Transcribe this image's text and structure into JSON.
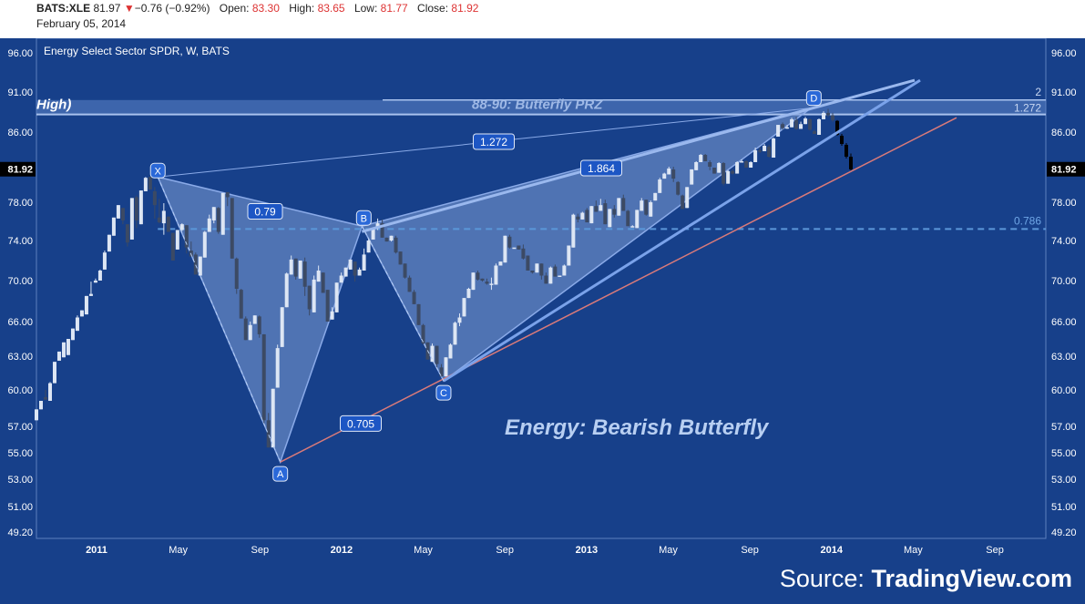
{
  "header": {
    "symbol": "BATS:XLE",
    "last": "81.97",
    "down_arrow": "▼",
    "change": "−0.76 (−0.92%)",
    "open_label": "Open:",
    "open": "83.30",
    "high_label": "High:",
    "high": "83.65",
    "low_label": "Low:",
    "low": "81.77",
    "close_label": "Close:",
    "close": "81.92",
    "date": "February 05, 2014"
  },
  "source": {
    "prefix": "Source: ",
    "brand": "TradingView.com"
  },
  "colors": {
    "background": "#17408a",
    "up_candle": "#dde6f4",
    "down_candle": "#3c4a64",
    "last_candles": "#000000",
    "pattern_fill": "#7d9dd6",
    "pattern_line": "#8aaae8",
    "trend_red": "#d97a7a",
    "level_dashed": "#5b97d9",
    "prz_band": "#5d84c9",
    "point_marker": "#2a68d8"
  },
  "chart_data": {
    "type": "candlestick",
    "title": "Energy Select Sector SPDR, W, BATS",
    "annotation_title": "Energy: Bearish Butterfly",
    "y_ticks": [
      "96.00",
      "91.00",
      "86.00",
      "82.00",
      "78.00",
      "74.00",
      "70.00",
      "66.00",
      "63.00",
      "60.00",
      "57.00",
      "55.00",
      "53.00",
      "51.00",
      "49.20"
    ],
    "x_ticks": [
      "2011",
      "May",
      "Sep",
      "2012",
      "May",
      "Sep",
      "2013",
      "May",
      "Sep",
      "2014",
      "May",
      "Sep"
    ],
    "last_price_label": "81.92",
    "harmonic_points": [
      {
        "label": "X",
        "date": "2011-04",
        "price": 81.0
      },
      {
        "label": "A",
        "date": "2011-10",
        "price": 54.3
      },
      {
        "label": "B",
        "date": "2012-02",
        "price": 75.5
      },
      {
        "label": "C",
        "date": "2012-06",
        "price": 60.8
      },
      {
        "label": "D",
        "date": "2013-12",
        "price": 89.0
      }
    ],
    "ratios": [
      "0.79",
      "0.705",
      "1.864",
      "1.272"
    ],
    "levels": [
      {
        "label": "0.786",
        "price": 75.2
      },
      {
        "label": "1.272",
        "price": 88.2
      },
      {
        "label": "2",
        "price": 90.0
      }
    ],
    "zone_label": "88-90: Butterfly PRZ",
    "zone_partial_label": "High)",
    "candles": [
      [
        57.5,
        58.4,
        57.8,
        58.4
      ],
      [
        58.4,
        59.1,
        58.5,
        59.4
      ],
      [
        59.4,
        59.2,
        60.0,
        59.4
      ],
      [
        59.1,
        60.6,
        60.7,
        59.4
      ],
      [
        60.6,
        62.5,
        62.2,
        62.7
      ],
      [
        62.6,
        63.4,
        62.7,
        62.9
      ],
      [
        62.9,
        64.2,
        63.0,
        64.3
      ],
      [
        63.1,
        64.5,
        64.4,
        65.1
      ],
      [
        64.4,
        65.4,
        65.2,
        65.5
      ],
      [
        65.2,
        66.4,
        66.6,
        66.1
      ],
      [
        66.5,
        67.1,
        66.8,
        67.4
      ],
      [
        66.7,
        68.5,
        68.5,
        68.3
      ],
      [
        68.5,
        68.7,
        69.9,
        68.6
      ],
      [
        69.8,
        70.0,
        70.2,
        70.1
      ],
      [
        70.0,
        71.0,
        71.1,
        72.7
      ],
      [
        71.1,
        72.8,
        73.0,
        72.3
      ],
      [
        72.9,
        74.6,
        74.5,
        74.6
      ],
      [
        74.5,
        76.4,
        76.2,
        76.1
      ],
      [
        76.3,
        77.7,
        77.1,
        77.8
      ],
      [
        77.4,
        76.1,
        77.4,
        75.7
      ],
      [
        75.7,
        73.8,
        74.6,
        73.4
      ],
      [
        74.1,
        78.5,
        77.7,
        78.7
      ],
      [
        78.6,
        76.1,
        78.8,
        75.3
      ],
      [
        75.7,
        79.4,
        79.4,
        79.4
      ],
      [
        79.3,
        80.9,
        81.0,
        80.8
      ],
      [
        81.0,
        79.5,
        79.4,
        79.7
      ],
      [
        79.3,
        77.7,
        79.8,
        76.3
      ],
      [
        76.4,
        75.9,
        78.4,
        75.8
      ],
      [
        75.8,
        77.1,
        77.9,
        74.6
      ],
      [
        76.5,
        74.9,
        76.3,
        74.9
      ],
      [
        74.8,
        72.0,
        74.6,
        73.9
      ],
      [
        73.1,
        75.1,
        75.0,
        75.1
      ],
      [
        75.1,
        75.7,
        75.8,
        75.0
      ],
      [
        75.6,
        73.3,
        75.6,
        72.7
      ],
      [
        73.0,
        72.4,
        73.9,
        72.4
      ],
      [
        72.6,
        70.6,
        72.8,
        71.0
      ],
      [
        70.5,
        72.4,
        72.3,
        73.4
      ],
      [
        72.3,
        74.9,
        75.0,
        75.2
      ],
      [
        74.9,
        76.3,
        76.7,
        76.0
      ],
      [
        76.1,
        77.5,
        77.5,
        75.8
      ],
      [
        77.4,
        74.9,
        77.5,
        74.7
      ],
      [
        74.6,
        79.1,
        79.1,
        79.1
      ],
      [
        79.2,
        78.6,
        78.8,
        77.6
      ],
      [
        78.5,
        72.2,
        78.5,
        72.5
      ],
      [
        72.2,
        69.2,
        72.3,
        68.7
      ],
      [
        69.1,
        66.3,
        69.2,
        66.3
      ],
      [
        66.3,
        64.4,
        66.5,
        64.4
      ],
      [
        64.4,
        65.7,
        66.0,
        64.7
      ],
      [
        65.8,
        66.6,
        66.2,
        66.5
      ],
      [
        66.5,
        64.9,
        66.6,
        64.6
      ],
      [
        64.9,
        57.5,
        64.9,
        57.2
      ],
      [
        57.5,
        55.4,
        58.1,
        55.6
      ],
      [
        55.4,
        60.1,
        59.9,
        60.0
      ],
      [
        60.2,
        63.7,
        64.0,
        63.4
      ],
      [
        63.8,
        67.4,
        67.3,
        67.7
      ],
      [
        67.4,
        70.7,
        70.8,
        70.1
      ],
      [
        70.6,
        72.1,
        72.5,
        72.3
      ],
      [
        72.2,
        70.4,
        72.0,
        70.1
      ],
      [
        70.2,
        72.0,
        71.9,
        72.0
      ],
      [
        71.9,
        69.4,
        72.3,
        68.5
      ],
      [
        69.5,
        67.2,
        69.2,
        66.6
      ],
      [
        66.9,
        70.1,
        70.5,
        69.4
      ],
      [
        69.9,
        71.0,
        71.5,
        70.2
      ],
      [
        70.8,
        68.8,
        70.8,
        69.0
      ],
      [
        69.1,
        66.0,
        69.0,
        66.0
      ],
      [
        66.2,
        67.0,
        67.4,
        66.2
      ],
      [
        66.9,
        69.8,
        69.5,
        69.2
      ],
      [
        69.8,
        70.5,
        70.8,
        69.9
      ],
      [
        70.4,
        71.3,
        71.3,
        71.3
      ],
      [
        71.1,
        72.1,
        71.7,
        72.4
      ],
      [
        71.9,
        70.5,
        71.9,
        69.9
      ],
      [
        70.5,
        71.1,
        71.3,
        71.6
      ],
      [
        71.0,
        72.6,
        73.2,
        71.9
      ],
      [
        72.8,
        74.0,
        74.2,
        73.4
      ],
      [
        74.1,
        75.3,
        75.3,
        75.3
      ],
      [
        75.3,
        75.8,
        76.3,
        75.1
      ],
      [
        75.8,
        74.3,
        76.2,
        75.1
      ],
      [
        74.3,
        73.9,
        74.3,
        73.9
      ],
      [
        74.0,
        74.5,
        74.5,
        73.9
      ],
      [
        74.3,
        72.8,
        74.5,
        72.7
      ],
      [
        72.9,
        71.6,
        72.8,
        71.8
      ],
      [
        71.7,
        70.3,
        71.5,
        70.2
      ],
      [
        70.3,
        68.9,
        70.5,
        68.9
      ],
      [
        68.9,
        67.7,
        69.1,
        67.7
      ],
      [
        67.7,
        65.7,
        67.6,
        65.7
      ],
      [
        65.7,
        64.1,
        65.8,
        64.0
      ],
      [
        64.2,
        62.7,
        64.1,
        62.7
      ],
      [
        62.5,
        63.9,
        64.1,
        62.6
      ],
      [
        63.9,
        62.3,
        63.9,
        62.0
      ],
      [
        62.0,
        61.2,
        62.3,
        61.3
      ],
      [
        61.2,
        62.9,
        62.9,
        62.7
      ],
      [
        62.8,
        64.0,
        64.1,
        64.2
      ],
      [
        64.0,
        65.9,
        66.0,
        65.5
      ],
      [
        65.9,
        66.4,
        66.8,
        65.6
      ],
      [
        66.5,
        68.3,
        68.3,
        68.2
      ],
      [
        68.3,
        69.2,
        69.3,
        69.0
      ],
      [
        69.1,
        70.8,
        70.8,
        70.8
      ],
      [
        70.8,
        70.1,
        71.0,
        70.0
      ],
      [
        70.2,
        70.0,
        70.2,
        69.9
      ],
      [
        69.9,
        69.7,
        70.2,
        69.6
      ],
      [
        69.6,
        69.7,
        70.3,
        69.1
      ],
      [
        69.6,
        71.5,
        71.7,
        71.6
      ],
      [
        71.5,
        71.9,
        71.9,
        72.0
      ],
      [
        71.8,
        74.5,
        74.5,
        74.8
      ],
      [
        74.4,
        73.3,
        74.6,
        73.2
      ],
      [
        73.3,
        73.3,
        73.3,
        73.3
      ],
      [
        73.5,
        73.1,
        73.4,
        73.2
      ],
      [
        73.2,
        72.2,
        73.6,
        72.1
      ],
      [
        72.5,
        71.0,
        72.2,
        71.1
      ],
      [
        71.0,
        70.8,
        70.9,
        70.7
      ],
      [
        70.8,
        71.7,
        71.7,
        71.4
      ],
      [
        71.7,
        70.5,
        71.6,
        70.1
      ],
      [
        70.5,
        69.7,
        70.8,
        69.8
      ],
      [
        69.7,
        71.3,
        71.4,
        71.4
      ],
      [
        71.4,
        70.4,
        71.6,
        70.5
      ],
      [
        70.5,
        70.5,
        70.5,
        70.5
      ],
      [
        70.5,
        71.5,
        71.6,
        71.5
      ],
      [
        71.5,
        73.5,
        73.5,
        73.4
      ],
      [
        73.3,
        76.7,
        76.8,
        76.7
      ],
      [
        76.5,
        76.2,
        76.8,
        75.9
      ],
      [
        76.2,
        76.9,
        77.0,
        77.3
      ],
      [
        77.2,
        75.9,
        77.4,
        75.9
      ],
      [
        75.8,
        77.6,
        77.6,
        77.8
      ],
      [
        77.6,
        77.0,
        78.2,
        77.0
      ],
      [
        77.1,
        77.7,
        78.4,
        78.5
      ],
      [
        77.9,
        75.7,
        78.3,
        75.9
      ],
      [
        75.4,
        77.3,
        77.3,
        77.3
      ],
      [
        77.3,
        76.7,
        77.7,
        76.4
      ],
      [
        76.6,
        78.5,
        78.5,
        78.7
      ],
      [
        78.5,
        77.1,
        78.9,
        77.1
      ],
      [
        77.1,
        75.5,
        77.2,
        75.5
      ],
      [
        75.5,
        75.5,
        75.6,
        75.4
      ],
      [
        75.3,
        77.2,
        77.2,
        77.1
      ],
      [
        77.1,
        78.2,
        78.5,
        78.1
      ],
      [
        78.3,
        76.7,
        78.3,
        76.6
      ],
      [
        76.5,
        78.0,
        78.2,
        78.0
      ],
      [
        78.2,
        79.1,
        79.1,
        79.1
      ],
      [
        79.1,
        80.7,
        80.9,
        80.8
      ],
      [
        80.8,
        81.4,
        81.5,
        81.3
      ],
      [
        81.3,
        82.0,
        82.2,
        82.0
      ],
      [
        81.9,
        80.8,
        82.2,
        80.4
      ],
      [
        80.4,
        78.9,
        80.5,
        78.8
      ],
      [
        78.8,
        77.3,
        78.9,
        77.3
      ],
      [
        77.4,
        79.8,
        79.7,
        79.9
      ],
      [
        80.1,
        81.9,
        81.8,
        82.0
      ],
      [
        81.8,
        82.7,
        82.8,
        82.8
      ],
      [
        82.7,
        83.5,
        83.6,
        83.1
      ],
      [
        83.5,
        82.8,
        83.6,
        82.8
      ],
      [
        82.7,
        82.2,
        82.9,
        81.8
      ],
      [
        82.1,
        81.4,
        82.1,
        81.5
      ],
      [
        81.5,
        82.6,
        82.7,
        82.3
      ],
      [
        82.6,
        80.2,
        82.7,
        80.0
      ],
      [
        80.2,
        81.7,
        81.8,
        81.7
      ],
      [
        81.7,
        81.4,
        81.9,
        81.3
      ],
      [
        81.4,
        82.7,
        82.8,
        82.7
      ],
      [
        82.7,
        82.8,
        83.0,
        82.7
      ],
      [
        82.8,
        82.1,
        82.9,
        82.1
      ],
      [
        82.1,
        82.7,
        82.8,
        82.7
      ],
      [
        82.7,
        84.0,
        84.3,
        84.0
      ],
      [
        84.0,
        83.9,
        84.3,
        83.7
      ],
      [
        83.9,
        84.5,
        84.7,
        84.5
      ],
      [
        84.4,
        83.3,
        84.6,
        83.2
      ],
      [
        83.2,
        85.3,
        85.4,
        85.3
      ],
      [
        85.5,
        86.9,
        86.9,
        87.1
      ],
      [
        87.0,
        86.5,
        87.2,
        86.3
      ],
      [
        86.5,
        86.6,
        86.9,
        86.4
      ],
      [
        86.6,
        87.6,
        87.8,
        87.6
      ],
      [
        87.5,
        86.4,
        87.9,
        86.3
      ],
      [
        86.4,
        87.0,
        87.3,
        87.0
      ],
      [
        87.0,
        87.7,
        87.9,
        87.5
      ],
      [
        87.6,
        86.3,
        87.7,
        86.2
      ],
      [
        86.1,
        85.8,
        86.3,
        85.8
      ],
      [
        85.7,
        87.6,
        87.7,
        87.6
      ],
      [
        87.6,
        88.4,
        88.6,
        88.3
      ],
      [
        88.4,
        88.1,
        88.9,
        87.9
      ],
      [
        88.1,
        87.5,
        88.4,
        87.3
      ],
      [
        87.4,
        85.7,
        87.5,
        85.6
      ],
      [
        85.6,
        84.7,
        85.8,
        84.5
      ],
      [
        84.6,
        83.3,
        84.8,
        83.1
      ],
      [
        83.3,
        81.9,
        83.65,
        81.77
      ]
    ]
  }
}
